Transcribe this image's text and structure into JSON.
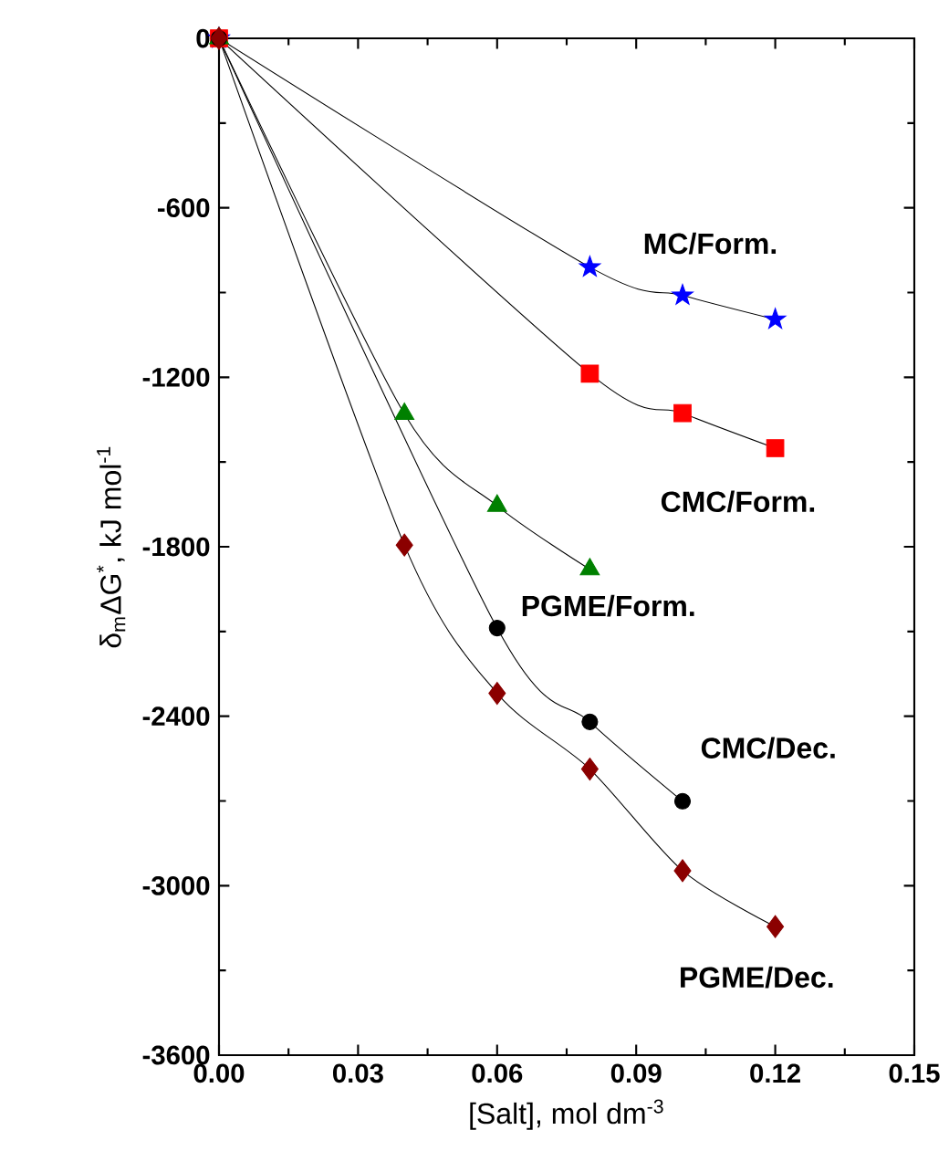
{
  "chart_data": {
    "type": "line",
    "xlabel": "[Salt], mol dm$^{-3}$",
    "ylabel": "δ$_{m}$ΔG$^{*}$, kJ mol$^{-1}$",
    "xlim": [
      0,
      0.15
    ],
    "ylim": [
      -3600,
      0
    ],
    "xticks": [
      {
        "value": 0,
        "label": "0.00"
      },
      {
        "value": 0.03,
        "label": "0.03"
      },
      {
        "value": 0.06,
        "label": "0.06"
      },
      {
        "value": 0.09,
        "label": "0.09"
      },
      {
        "value": 0.12,
        "label": "0.12"
      },
      {
        "value": 0.15,
        "label": "0.15"
      }
    ],
    "yticks": [
      -3600,
      -3000,
      -2400,
      -1800,
      -1200,
      -600,
      0
    ],
    "grid": false,
    "legend": false,
    "series": [
      {
        "name": "MC/Form.",
        "color": "#0000ff",
        "marker": "star",
        "x": [
          0,
          0.08,
          0.1,
          0.12
        ],
        "values": [
          0,
          -810,
          -910,
          -995
        ]
      },
      {
        "name": "CMC/Form.",
        "color": "#ff0000",
        "marker": "square",
        "x": [
          0,
          0.08,
          0.1,
          0.12
        ],
        "values": [
          0,
          -1187,
          -1327,
          -1451
        ]
      },
      {
        "name": "PGME/Form.",
        "color": "#008000",
        "marker": "triangle",
        "x": [
          0,
          0.04,
          0.06,
          0.08
        ],
        "values": [
          0,
          -1330,
          -1655,
          -1880
        ]
      },
      {
        "name": "CMC/Dec.",
        "color": "#000000",
        "marker": "circle",
        "x": [
          0,
          0.06,
          0.08,
          0.1
        ],
        "values": [
          0,
          -2088,
          -2420,
          -2701
        ]
      },
      {
        "name": "PGME/Dec.",
        "color": "#8b0000",
        "marker": "diamond",
        "x": [
          0,
          0.04,
          0.06,
          0.08,
          0.1,
          0.12
        ],
        "values": [
          0,
          -1794,
          -2319,
          -2587,
          -2947,
          -3145
        ]
      }
    ]
  }
}
